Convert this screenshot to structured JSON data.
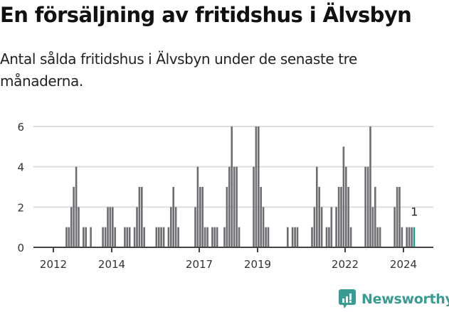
{
  "header": {
    "title": "En försäljning av fritidshus i Älvsbyn",
    "subtitle": "Antal sålda fritidshus i Älvsbyn under de senaste tre månaderna."
  },
  "colors": {
    "bar": "#6e6d72",
    "highlight": "#1a9e95",
    "grid": "#dddddd",
    "axis": "#444444",
    "brand": "#3a9b93"
  },
  "branding": {
    "logo_text": "Newsworthy",
    "logo_icon": "bar-chart-speech-bubble-icon"
  },
  "chart_data": {
    "type": "bar",
    "title": "En försäljning av fritidshus i Älvsbyn",
    "subtitle": "Antal sålda fritidshus i Älvsbyn under de senaste tre månaderna.",
    "xlabel": "",
    "ylabel": "",
    "ylim": [
      0,
      6
    ],
    "yticks": [
      0,
      2,
      4,
      6
    ],
    "xticks": [
      "2012",
      "2014",
      "2017",
      "2019",
      "2022",
      "2024"
    ],
    "grid": true,
    "legend": "none",
    "annotation": {
      "label": "1",
      "target": "last bar"
    },
    "start_month": "2011-05",
    "granularity": "month",
    "values": [
      0,
      0,
      0,
      0,
      0,
      0,
      0,
      0,
      0,
      0,
      0,
      0,
      0,
      1,
      1,
      2,
      3,
      4,
      2,
      0,
      1,
      1,
      0,
      1,
      0,
      0,
      0,
      0,
      1,
      1,
      2,
      2,
      2,
      1,
      0,
      0,
      0,
      1,
      1,
      1,
      0,
      1,
      2,
      3,
      3,
      1,
      0,
      0,
      0,
      0,
      1,
      1,
      1,
      1,
      0,
      1,
      2,
      3,
      2,
      1,
      0,
      0,
      0,
      0,
      0,
      0,
      2,
      4,
      3,
      3,
      1,
      1,
      0,
      1,
      1,
      1,
      0,
      0,
      1,
      3,
      4,
      6,
      4,
      4,
      1,
      0,
      0,
      0,
      0,
      0,
      4,
      6,
      6,
      3,
      2,
      1,
      1,
      0,
      0,
      0,
      0,
      0,
      0,
      0,
      1,
      0,
      1,
      1,
      1,
      0,
      0,
      0,
      0,
      0,
      1,
      2,
      4,
      3,
      2,
      0,
      1,
      1,
      2,
      0,
      2,
      3,
      3,
      5,
      4,
      3,
      1,
      0,
      0,
      0,
      0,
      0,
      4,
      4,
      6,
      2,
      3,
      1,
      1,
      0,
      0,
      0,
      0,
      0,
      2,
      3,
      3,
      1,
      0,
      1,
      1,
      1,
      1
    ],
    "last_value": 1
  }
}
